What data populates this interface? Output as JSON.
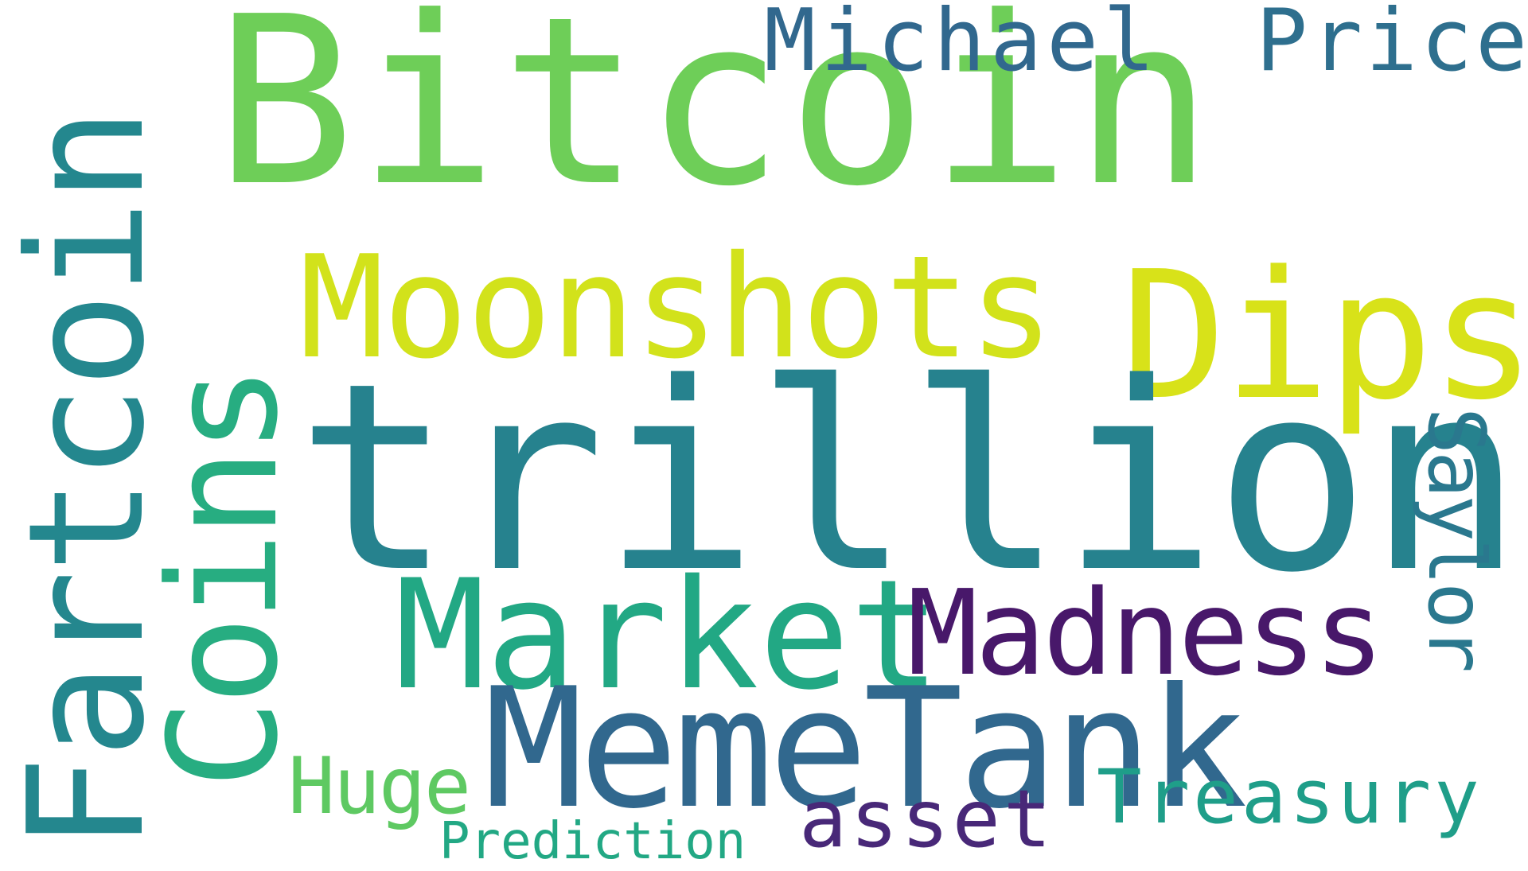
{
  "word_cloud": {
    "words": {
      "bitcoin": {
        "text": "Bitcoin",
        "color": "#6ece58"
      },
      "trillion": {
        "text": "trillion",
        "color": "#26828e"
      },
      "moonshots": {
        "text": "Moonshots",
        "color": "#d2e21b"
      },
      "dips": {
        "text": "Dips",
        "color": "#d8e219"
      },
      "fartcoin": {
        "text": "Fartcoin",
        "color": "#24878e"
      },
      "coins": {
        "text": "Coins",
        "color": "#27ad81"
      },
      "market": {
        "text": "Market",
        "color": "#22a884"
      },
      "madness": {
        "text": "Madness",
        "color": "#48186a"
      },
      "memetank": {
        "text": "MemeTank",
        "color": "#31688e"
      },
      "michael": {
        "text": "Michael",
        "color": "#31688e"
      },
      "price": {
        "text": "Price",
        "color": "#2e6f8e"
      },
      "saylor": {
        "text": "Saylor",
        "color": "#2a788e"
      },
      "huge": {
        "text": "Huge",
        "color": "#5ec962"
      },
      "asset": {
        "text": "asset",
        "color": "#482878"
      },
      "treasury": {
        "text": "Treasury",
        "color": "#1f9e89"
      },
      "prediction": {
        "text": "Prediction",
        "color": "#22a884"
      }
    },
    "background": "#ffffff"
  }
}
